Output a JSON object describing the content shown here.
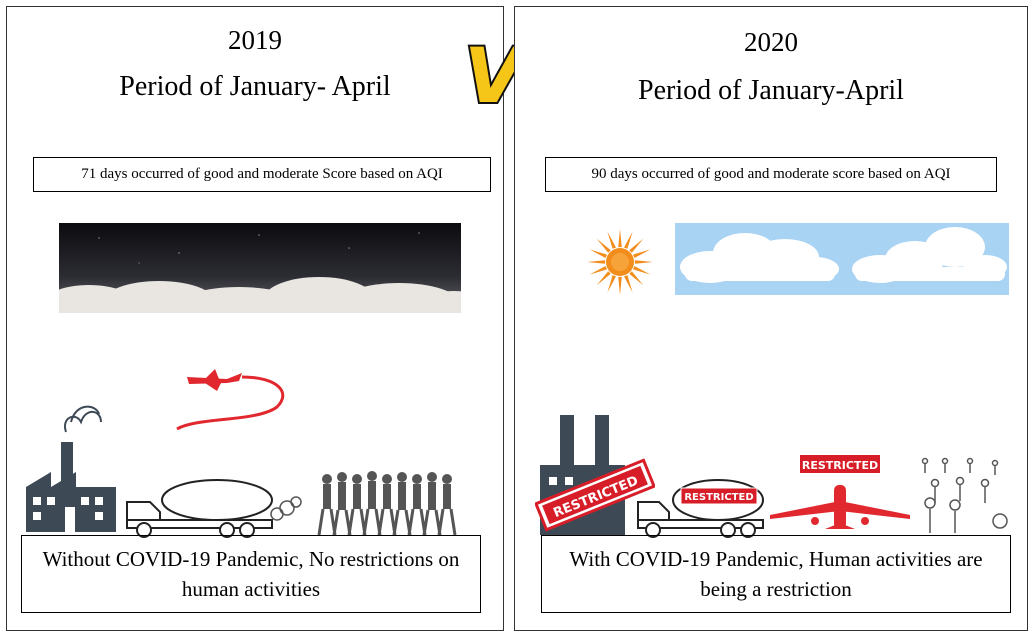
{
  "left": {
    "year": "2019",
    "period": "Period of January- April",
    "aqi_note": "71 days occurred of good and moderate Score based on AQI",
    "caption": "Without COVID-19 Pandemic, No restrictions on human activities"
  },
  "right": {
    "year": "2020",
    "period": "Period of January-April",
    "aqi_note": "90 days occurred of good and moderate score based on AQI",
    "caption": "With COVID-19 Pandemic, Human activities are being a restriction",
    "stamp_label": "RESTRICTED"
  },
  "center_badge": "VS",
  "colors": {
    "building": "#3d4a55",
    "restricted_red": "#d71e28",
    "plane_red": "#e0282e",
    "sky_blue": "#a9d3f2",
    "sun_orange": "#f28c1b",
    "vs_yellow": "#f5c518"
  }
}
